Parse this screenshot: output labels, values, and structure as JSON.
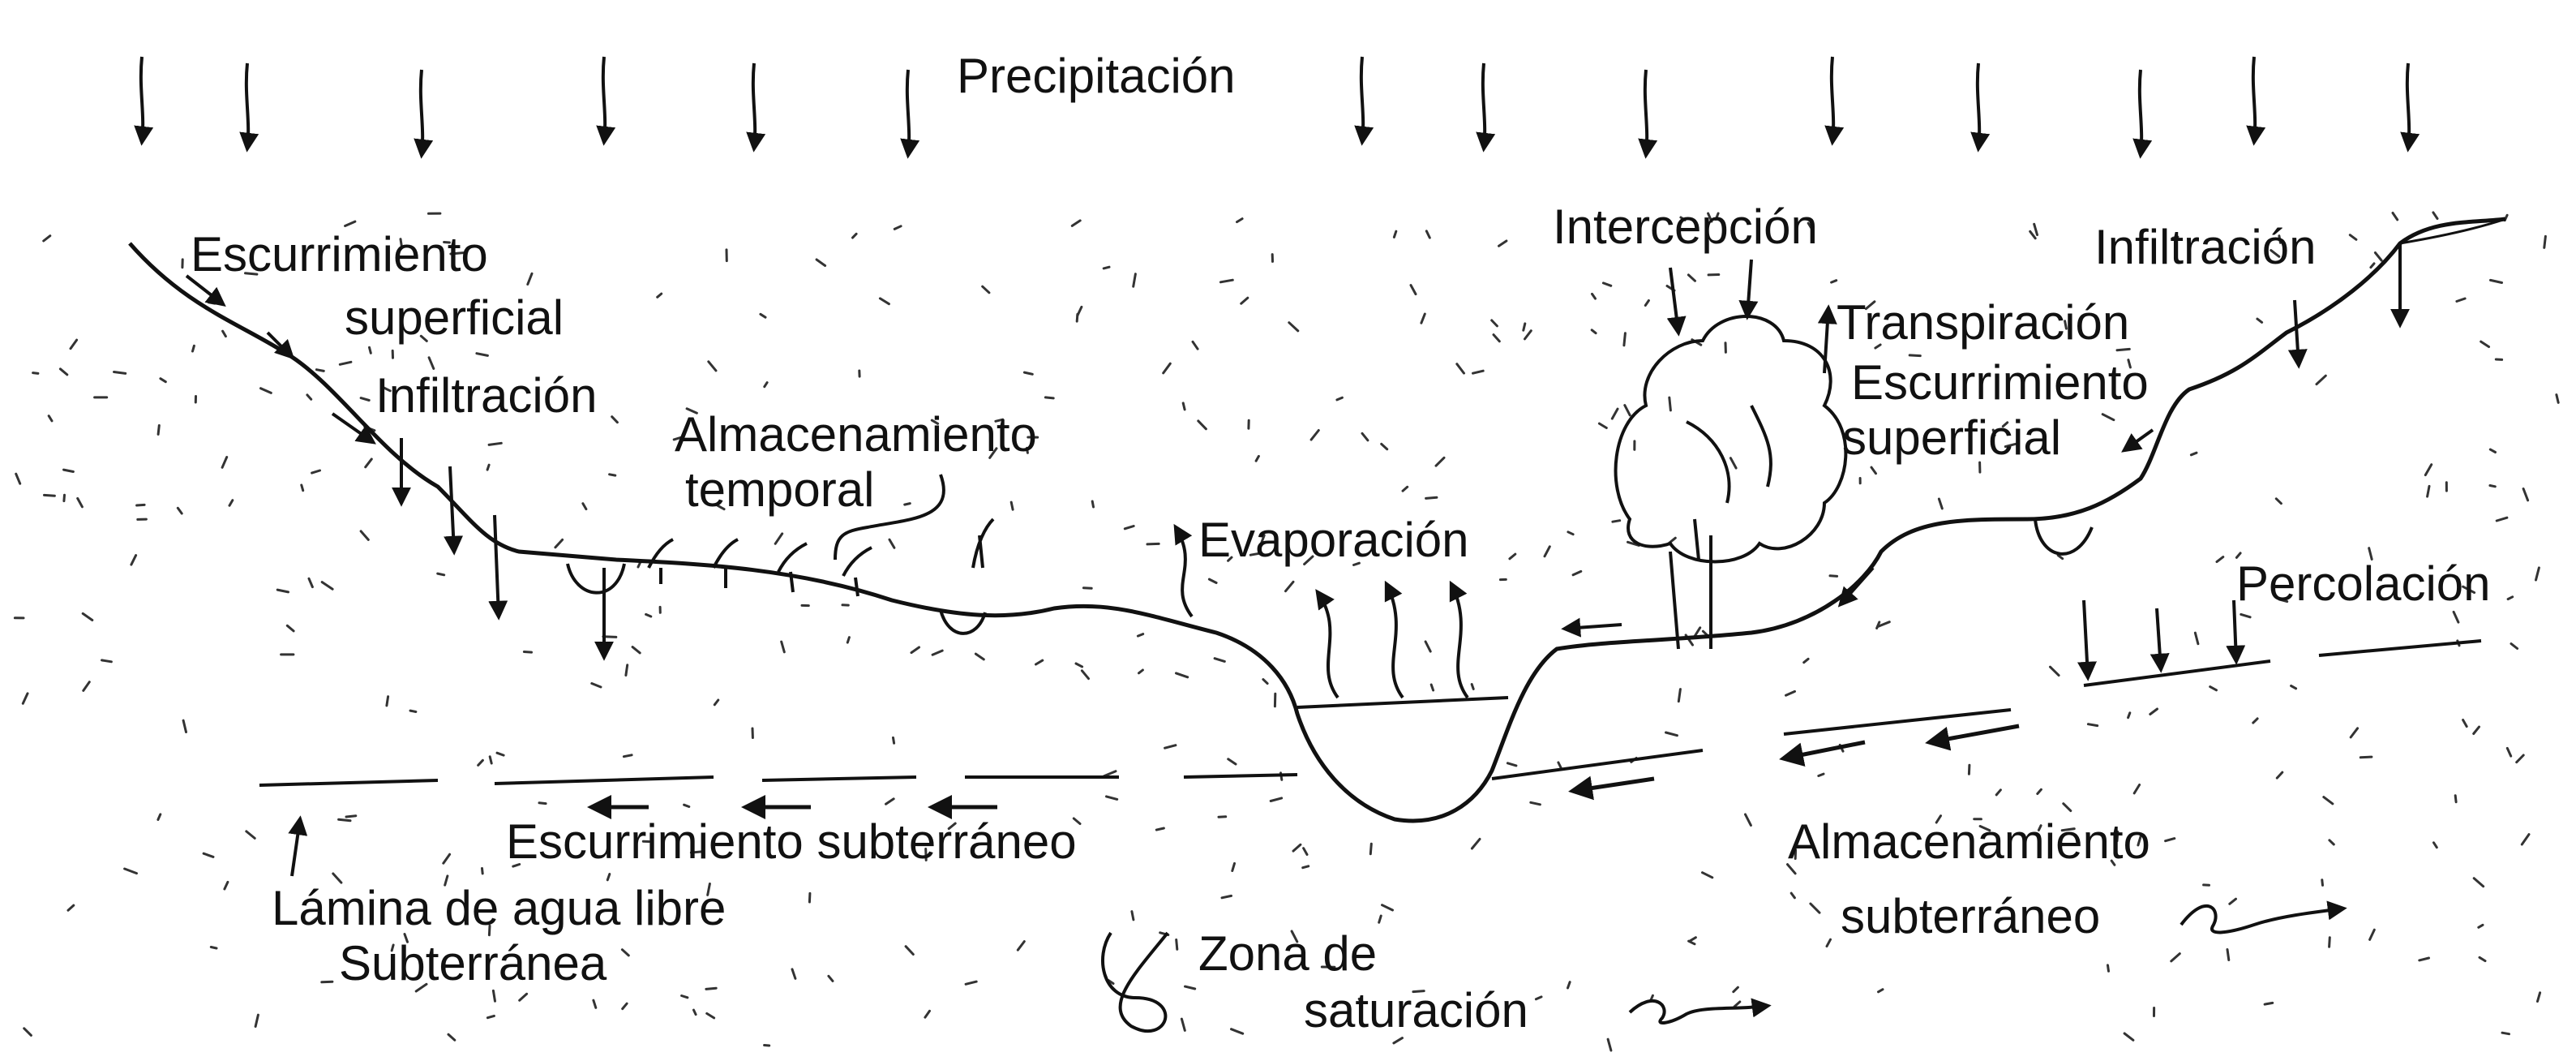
{
  "diagram": {
    "type": "hydrologic-cycle-sketch",
    "labels": {
      "precipitacion": "Precipitación",
      "escurrimiento_superficial_left_1": "Escurrimiento",
      "escurrimiento_superficial_left_2": "superficial",
      "infiltracion_left": "Infiltración",
      "almacenamiento_temporal_1": "Almacenamiento",
      "almacenamiento_temporal_2": "temporal",
      "evaporacion": "Evaporación",
      "intercepcion": "Intercepción",
      "transpiracion": "Transpiración",
      "infiltracion_right": "Infiltración",
      "escurrimiento_superficial_right_1": "Escurrimiento",
      "escurrimiento_superficial_right_2": "superficial",
      "percolacion": "Percolación",
      "escurrimiento_subterraneo": "Escurrimiento subterráneo",
      "lamina_agua_1": "Lámina de agua libre",
      "lamina_agua_2": "Subterránea",
      "almacenamiento_subterraneo_1": "Almacenamiento",
      "almacenamiento_subterraneo_2": "subterráneo",
      "zona_saturacion_1": "Zona de",
      "zona_saturacion_2": "saturación"
    },
    "colors": {
      "ink": "#111111",
      "background": "#ffffff"
    }
  }
}
